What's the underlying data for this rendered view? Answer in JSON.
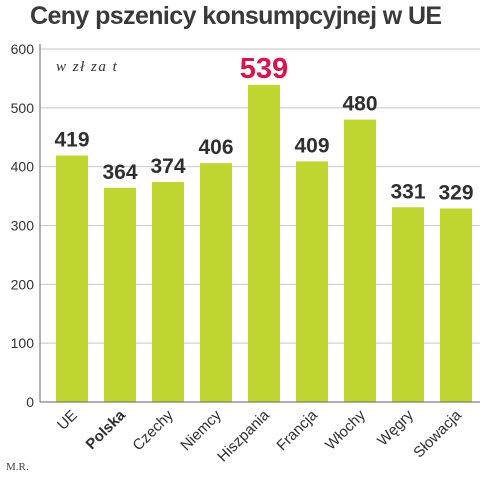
{
  "chart_data": {
    "type": "bar",
    "title": "Ceny pszenicy konsumpcyjnej w UE",
    "unit_label": "w zł za t",
    "categories": [
      "UE",
      "Polska",
      "Czechy",
      "Niemcy",
      "Hiszpania",
      "Francja",
      "Włochy",
      "Węgry",
      "Słowacja"
    ],
    "values": [
      419,
      364,
      374,
      406,
      539,
      409,
      480,
      331,
      329
    ],
    "value_labels": [
      "419",
      "364",
      "374",
      "406",
      "539",
      "409",
      "480",
      "331",
      "329"
    ],
    "ylim": [
      0,
      600
    ],
    "yticks": [
      "0",
      "100",
      "200",
      "300",
      "400",
      "500",
      "600"
    ],
    "grid": true,
    "bar_color": "#bfd630",
    "highlight_index": 4,
    "highlight_color": "#d6154a",
    "bold_category_index": 1
  },
  "credit": "M.R."
}
